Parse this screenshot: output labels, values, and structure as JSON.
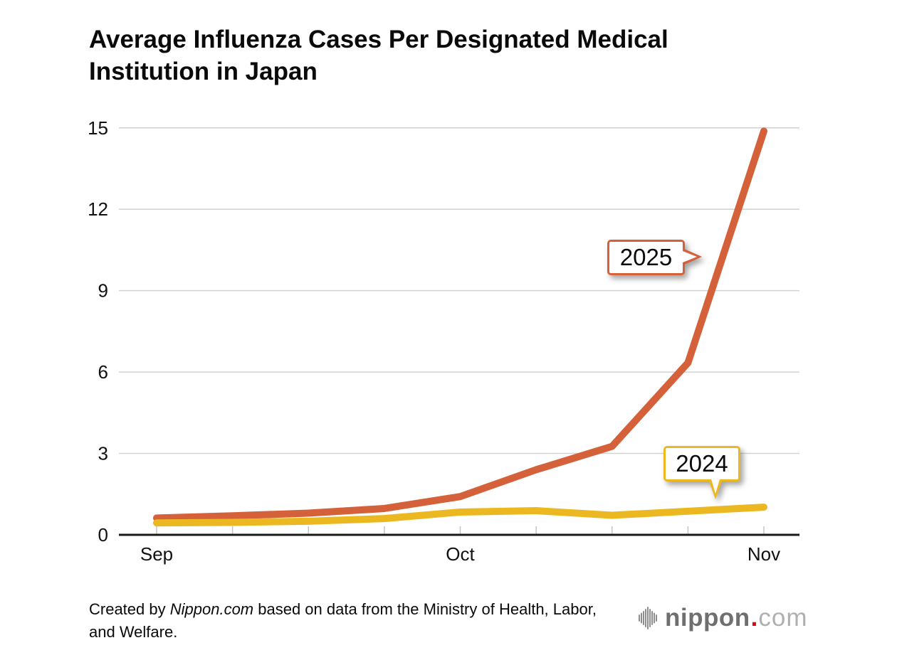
{
  "header": {
    "title_line1": "Average Influenza Cases Per Designated Medical",
    "title_line2": "Institution in Japan"
  },
  "chart_data": {
    "type": "line",
    "title": "Average Influenza Cases Per Designated Medical Institution in Japan",
    "xlabel": "",
    "ylabel": "",
    "ylim": [
      0,
      15
    ],
    "y_ticks": [
      0,
      3,
      6,
      9,
      12,
      15
    ],
    "grid": "horizontal",
    "x_tick_count": 9,
    "x_tick_labels": [
      {
        "index": 0,
        "label": "Sep"
      },
      {
        "index": 4,
        "label": "Oct"
      },
      {
        "index": 8,
        "label": "Nov"
      }
    ],
    "series": [
      {
        "name": "2025",
        "color": "#d5613a",
        "values": [
          0.62,
          0.7,
          0.8,
          0.97,
          1.41,
          2.4,
          3.26,
          6.34,
          14.88
        ]
      },
      {
        "name": "2024",
        "color": "#ecb821",
        "values": [
          0.44,
          0.46,
          0.5,
          0.6,
          0.84,
          0.89,
          0.72,
          0.87,
          1.02
        ]
      }
    ],
    "annotations": [
      {
        "label": "2025",
        "series": "2025"
      },
      {
        "label": "2024",
        "series": "2024"
      }
    ],
    "legend_position": "inline-callouts"
  },
  "footer": {
    "attribution_prefix": "Created by ",
    "attribution_source": "Nippon.com",
    "attribution_suffix": " based on data from the Ministry of Health, Labor, and Welfare.",
    "logo_name": "nippon",
    "logo_dot": ".",
    "logo_tld": "com"
  },
  "colors": {
    "series_2025": "#d5613a",
    "series_2024": "#ecb821",
    "gridline": "#d2d2d2",
    "axis": "#1a1a1a",
    "tick": "#c4c4c4",
    "text": "#0a0a0a",
    "logo_gray": "#6f6f6f",
    "logo_light_gray": "#b0b0b0",
    "logo_red": "#e60012"
  }
}
